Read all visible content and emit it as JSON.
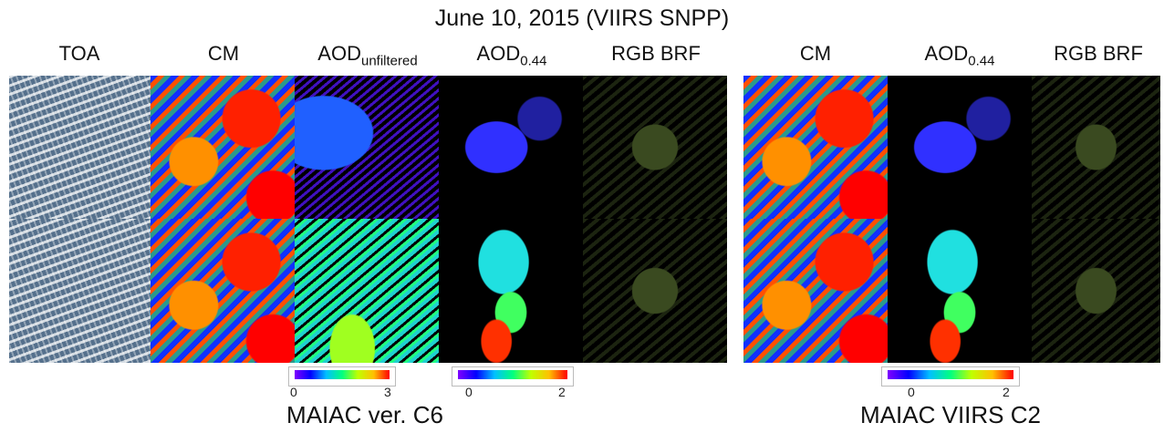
{
  "title": "June 10, 2015 (VIIRS SNPP)",
  "panels": [
    {
      "caption": "MAIAC ver. C6",
      "columns": [
        {
          "label": "TOA"
        },
        {
          "label": "CM"
        },
        {
          "label": "AOD",
          "sub": "unfiltered"
        },
        {
          "label": "AOD",
          "sub": "0.44"
        },
        {
          "label": "RGB BRF"
        }
      ],
      "colorbars": [
        {
          "min": 0,
          "max": 3
        },
        {
          "min": 0,
          "max": 2
        }
      ]
    },
    {
      "caption": "MAIAC VIIRS C2",
      "columns": [
        {
          "label": "CM"
        },
        {
          "label": "AOD",
          "sub": "0.44"
        },
        {
          "label": "RGB BRF"
        }
      ],
      "colorbars": [
        {
          "min": 0,
          "max": 2
        }
      ]
    }
  ]
}
